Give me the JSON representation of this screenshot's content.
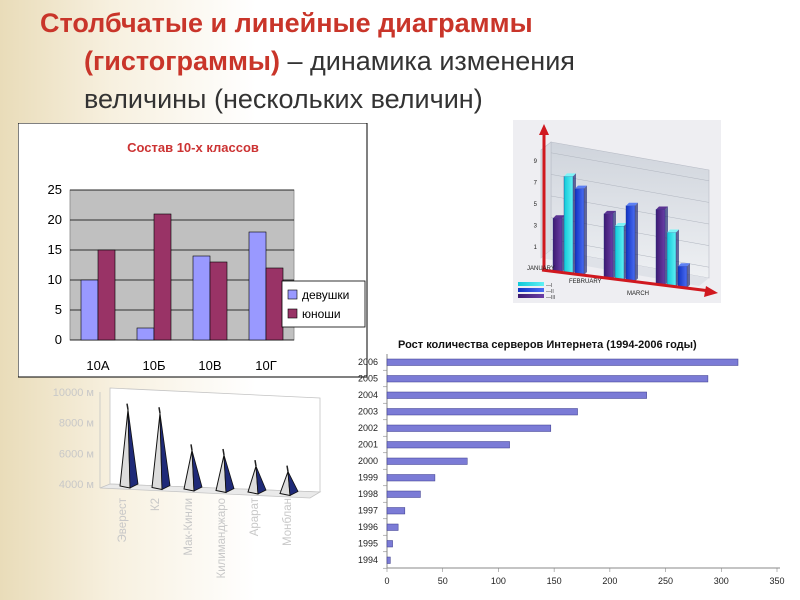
{
  "slide": {
    "title_red_1": "Столбчатые и линейные диаграммы",
    "title_red_2": "(гистограммы)",
    "title_dash": " – динамика изменения",
    "title_line3": "величины (нескольких величин)"
  },
  "colors": {
    "title_red": "#c9352a",
    "girls": "#9999ff",
    "boys": "#993366",
    "plot_bg": "#c0c0c0",
    "server_bars": "#7b7bd6",
    "chart_title_red": "#cc3333"
  },
  "chart_data": [
    {
      "type": "bar",
      "title": "Состав 10-х классов",
      "categories": [
        "10А",
        "10Б",
        "10В",
        "10Г"
      ],
      "series": [
        {
          "name": "девушки",
          "values": [
            10,
            2,
            14,
            18
          ]
        },
        {
          "name": "юноши",
          "values": [
            15,
            21,
            13,
            12
          ]
        }
      ],
      "y_ticks": [
        "0",
        "5",
        "10",
        "15",
        "20",
        "25"
      ],
      "ylim": [
        0,
        25
      ],
      "grid": true,
      "legend": "right"
    },
    {
      "type": "bar",
      "title": "",
      "categories": [
        "JANUARY",
        "FEBRUARY",
        "MARCH"
      ],
      "series": [
        {
          "name": "",
          "values": [
            5,
            6,
            7
          ]
        },
        {
          "name": "",
          "values": [
            9,
            5,
            5
          ]
        },
        {
          "name": "",
          "values": [
            8,
            7,
            2
          ]
        }
      ],
      "legend_entries": [
        "—I",
        "—II",
        "—III"
      ],
      "y_ticks": [
        "1",
        "3",
        "5",
        "7",
        "9"
      ],
      "ylim": [
        0,
        10
      ],
      "grid": true,
      "legend": "bottom-left"
    },
    {
      "type": "area",
      "title": "",
      "categories": [
        "Эверест",
        "К2",
        "Мак-Кинли",
        "Килиманджаро",
        "Арарат",
        "Монблан"
      ],
      "values": [
        8848,
        8611,
        6194,
        5895,
        5165,
        4810
      ],
      "y_ticks": [
        "4000 м",
        "6000 м",
        "8000 м",
        "10000 м"
      ],
      "ylim": [
        4000,
        10000
      ],
      "legend": "none"
    },
    {
      "type": "bar",
      "orientation": "horizontal",
      "title": "Рост количества серверов Интернета (1994-2006 годы)",
      "categories": [
        "1994",
        "1995",
        "1996",
        "1997",
        "1998",
        "1999",
        "2000",
        "2001",
        "2002",
        "2003",
        "2004",
        "2005",
        "2006"
      ],
      "values": [
        3,
        5,
        10,
        16,
        30,
        43,
        72,
        110,
        147,
        171,
        233,
        288,
        315
      ],
      "x_ticks": [
        "0",
        "50",
        "100",
        "150",
        "200",
        "250",
        "300",
        "350"
      ],
      "xlim": [
        0,
        350
      ],
      "grid": false,
      "legend": "none"
    }
  ]
}
